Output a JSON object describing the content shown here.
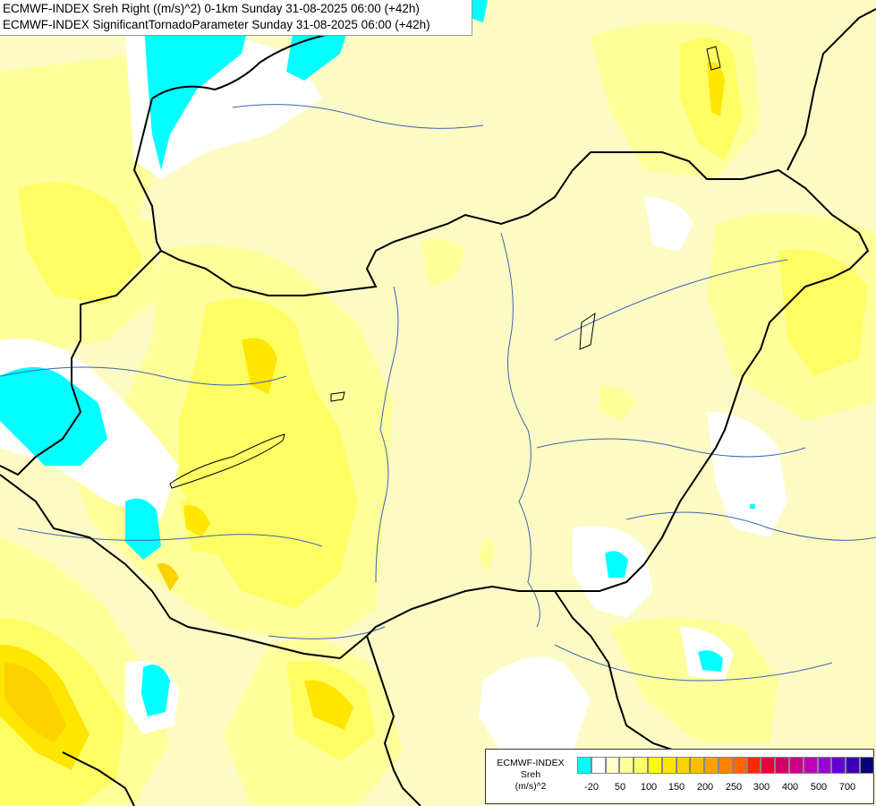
{
  "title": {
    "line1": "ECMWF-INDEX Sreh Right ((m/s)^2) 0-1km Sunday 31-08-2025 06:00 (+42h)",
    "line2": "ECMWF-INDEX SignificantTornadoParameter Sunday 31-08-2025 06:00 (+42h)"
  },
  "legend": {
    "title_line1": "ECMWF-INDEX",
    "title_line2": "Sreh",
    "title_line3": "(m/s)^2",
    "colors": [
      "#00ffff",
      "#ffffff",
      "#fefec8",
      "#fefe9a",
      "#fefe64",
      "#fefe00",
      "#fee600",
      "#fed200",
      "#febe00",
      "#fea000",
      "#fe8200",
      "#fe6400",
      "#fe2800",
      "#e6003c",
      "#d20064",
      "#c8008c",
      "#be00b4",
      "#9600d2",
      "#6400d2",
      "#3c00b4",
      "#0a0078"
    ],
    "ticks": [
      "-20",
      "50",
      "100",
      "150",
      "200",
      "250",
      "300",
      "400",
      "500",
      "700"
    ]
  },
  "colors": {
    "background": "#fdfbc4",
    "level_light": "#fefe9a",
    "level_mid": "#fefe64",
    "level_high": "#fee600",
    "level_orange": "#fed200",
    "negative": "#00ffff",
    "neutral": "#ffffff",
    "borders": "#000000",
    "rivers": "#3c64b4"
  }
}
